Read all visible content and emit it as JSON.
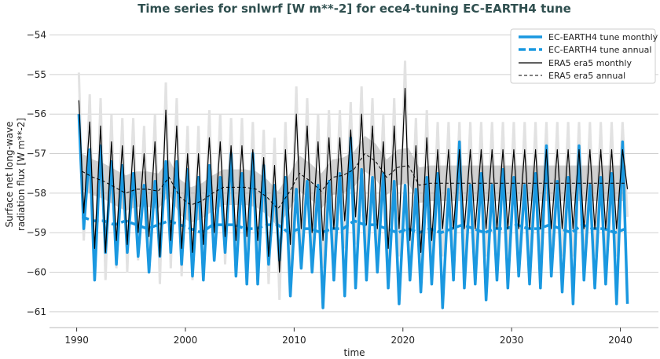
{
  "chart_data": {
    "type": "line",
    "title": "Time series for snlwrf [W m**-2] for ece4-tuning EC-EARTH4 tune",
    "xlabel": "time",
    "ylabel": "Surface net long-wave radiation flux [W m**-2]",
    "ylabel_lines": [
      "Surface net long-wave",
      "radiation flux [W m**-2]"
    ],
    "xlim": [
      1987.5,
      2043.5
    ],
    "ylim": [
      -61.4,
      -53.85
    ],
    "xticks": [
      "1990",
      "2000",
      "2010",
      "2020",
      "2030",
      "2040"
    ],
    "yticks": [
      "-54",
      "-55",
      "-56",
      "-57",
      "-58",
      "-59",
      "-60",
      "-61"
    ],
    "grid": "horizontal",
    "legend_position": "top-right",
    "years": [
      1990,
      1991,
      1992,
      1993,
      1994,
      1995,
      1996,
      1997,
      1998,
      1999,
      2000,
      2001,
      2002,
      2003,
      2004,
      2005,
      2006,
      2007,
      2008,
      2009,
      2010,
      2011,
      2012,
      2013,
      2014,
      2015,
      2016,
      2017,
      2018,
      2019,
      2020,
      2021,
      2022,
      2023,
      2024,
      2025,
      2026,
      2027,
      2028,
      2029,
      2030,
      2031,
      2032,
      2033,
      2034,
      2035,
      2036,
      2037,
      2038,
      2039,
      2040
    ],
    "series": [
      {
        "name": "EC-EARTH4 tune monthly",
        "color": "#1a98e0",
        "style": "solid-thick",
        "yearly_max_min": [
          [
            -56.0,
            -58.9
          ],
          [
            -56.9,
            -60.2
          ],
          [
            -56.8,
            -59.5
          ],
          [
            -57.2,
            -59.8
          ],
          [
            -57.3,
            -59.5
          ],
          [
            -57.5,
            -59.6
          ],
          [
            -57.8,
            -60.0
          ],
          [
            -57.7,
            -59.6
          ],
          [
            -57.2,
            -59.5
          ],
          [
            -57.2,
            -59.8
          ],
          [
            -57.4,
            -60.1
          ],
          [
            -57.6,
            -60.2
          ],
          [
            -57.3,
            -59.7
          ],
          [
            -57.6,
            -59.5
          ],
          [
            -57.0,
            -60.1
          ],
          [
            -57.5,
            -60.3
          ],
          [
            -57.0,
            -60.3
          ],
          [
            -57.3,
            -59.8
          ],
          [
            -57.8,
            -59.7
          ],
          [
            -57.6,
            -60.6
          ],
          [
            -57.9,
            -59.9
          ],
          [
            -57.7,
            -60.0
          ],
          [
            -57.8,
            -60.9
          ],
          [
            -57.7,
            -60.2
          ],
          [
            -57.5,
            -60.6
          ],
          [
            -56.6,
            -60.4
          ],
          [
            -57.4,
            -60.2
          ],
          [
            -57.6,
            -60.0
          ],
          [
            -57.5,
            -60.4
          ],
          [
            -57.7,
            -60.8
          ],
          [
            -57.8,
            -60.2
          ],
          [
            -57.9,
            -60.5
          ],
          [
            -57.6,
            -60.3
          ],
          [
            -57.5,
            -60.9
          ],
          [
            -57.9,
            -60.2
          ],
          [
            -56.7,
            -60.4
          ],
          [
            -57.8,
            -60.3
          ],
          [
            -57.5,
            -60.7
          ],
          [
            -57.8,
            -60.2
          ],
          [
            -57.4,
            -60.4
          ],
          [
            -57.6,
            -60.1
          ],
          [
            -57.8,
            -60.3
          ],
          [
            -57.5,
            -60.4
          ],
          [
            -56.8,
            -60.1
          ],
          [
            -57.7,
            -60.5
          ],
          [
            -57.6,
            -60.8
          ],
          [
            -56.8,
            -60.2
          ],
          [
            -57.8,
            -60.4
          ],
          [
            -57.6,
            -60.3
          ],
          [
            -57.5,
            -60.8
          ],
          [
            -56.7,
            -60.8
          ]
        ]
      },
      {
        "name": "EC-EARTH4 tune annual",
        "color": "#1a98e0",
        "style": "dashed-thick",
        "values": [
          -58.6,
          -58.7,
          -58.7,
          -58.8,
          -58.7,
          -58.8,
          -58.9,
          -58.8,
          -58.7,
          -58.8,
          -58.9,
          -59.0,
          -58.8,
          -58.8,
          -58.8,
          -58.9,
          -58.9,
          -58.8,
          -58.8,
          -59.0,
          -58.9,
          -58.9,
          -59.0,
          -58.9,
          -58.9,
          -58.7,
          -58.8,
          -58.8,
          -58.9,
          -59.0,
          -58.9,
          -59.0,
          -58.9,
          -59.0,
          -58.9,
          -58.8,
          -58.9,
          -59.0,
          -58.9,
          -58.9,
          -58.8,
          -58.9,
          -58.9,
          -58.8,
          -58.9,
          -59.0,
          -58.8,
          -58.9,
          -58.9,
          -59.0,
          -58.9
        ]
      },
      {
        "name": "ERA5 era5 monthly",
        "color": "#000000",
        "style": "solid-thin",
        "yearly_max_min": [
          [
            -55.65,
            -58.5
          ],
          [
            -56.2,
            -59.4
          ],
          [
            -56.3,
            -59.5
          ],
          [
            -56.7,
            -59.2
          ],
          [
            -56.8,
            -59.3
          ],
          [
            -56.8,
            -59.0
          ],
          [
            -57.0,
            -59.1
          ],
          [
            -56.7,
            -59.6
          ],
          [
            -55.9,
            -59.2
          ],
          [
            -56.3,
            -59.4
          ],
          [
            -57.0,
            -59.5
          ],
          [
            -57.0,
            -59.3
          ],
          [
            -56.6,
            -59.0
          ],
          [
            -56.7,
            -59.1
          ],
          [
            -56.8,
            -59.2
          ],
          [
            -56.8,
            -59.1
          ],
          [
            -56.9,
            -59.2
          ],
          [
            -57.1,
            -59.6
          ],
          [
            -57.3,
            -60.0
          ],
          [
            -56.9,
            -59.3
          ],
          [
            -56.0,
            -58.9
          ],
          [
            -56.3,
            -59.0
          ],
          [
            -56.7,
            -59.2
          ],
          [
            -56.6,
            -58.9
          ],
          [
            -56.6,
            -58.7
          ],
          [
            -56.4,
            -58.6
          ],
          [
            -56.0,
            -58.8
          ],
          [
            -56.3,
            -58.9
          ],
          [
            -56.7,
            -59.4
          ],
          [
            -56.3,
            -58.9
          ],
          [
            -55.35,
            -59.2
          ],
          [
            -56.8,
            -59.5
          ],
          [
            -56.6,
            -59.2
          ],
          [
            -56.9,
            -58.9
          ],
          [
            -56.9,
            -58.9
          ],
          [
            -56.9,
            -58.9
          ],
          [
            -56.9,
            -58.9
          ],
          [
            -56.9,
            -58.9
          ],
          [
            -56.9,
            -58.9
          ],
          [
            -56.9,
            -58.9
          ],
          [
            -56.9,
            -58.9
          ],
          [
            -56.9,
            -58.9
          ],
          [
            -56.9,
            -58.9
          ],
          [
            -56.9,
            -58.9
          ],
          [
            -56.9,
            -58.9
          ],
          [
            -56.9,
            -58.9
          ],
          [
            -56.9,
            -58.9
          ],
          [
            -56.9,
            -58.9
          ],
          [
            -56.9,
            -58.9
          ],
          [
            -56.9,
            -58.9
          ],
          [
            -56.9,
            -57.9
          ]
        ]
      },
      {
        "name": "ERA5 era5 annual",
        "color": "#000000",
        "style": "dashed-thin",
        "values": [
          -57.45,
          -57.6,
          -57.7,
          -57.85,
          -58.0,
          -57.9,
          -57.9,
          -57.95,
          -57.6,
          -58.1,
          -58.3,
          -58.2,
          -58.0,
          -57.85,
          -57.85,
          -57.85,
          -57.9,
          -58.1,
          -58.4,
          -58.0,
          -57.5,
          -57.7,
          -57.95,
          -57.6,
          -57.55,
          -57.4,
          -57.0,
          -57.2,
          -57.6,
          -57.35,
          -57.3,
          -57.8,
          -57.75,
          -57.75,
          -57.75,
          -57.75,
          -57.75,
          -57.75,
          -57.75,
          -57.75,
          -57.75,
          -57.75,
          -57.75,
          -57.75,
          -57.75,
          -57.75,
          -57.75,
          -57.75,
          -57.75,
          -57.75,
          -57.75
        ]
      }
    ],
    "legend": [
      "EC-EARTH4 tune monthly",
      "EC-EARTH4 tune annual",
      "ERA5 era5 monthly",
      "ERA5 era5 annual"
    ]
  }
}
